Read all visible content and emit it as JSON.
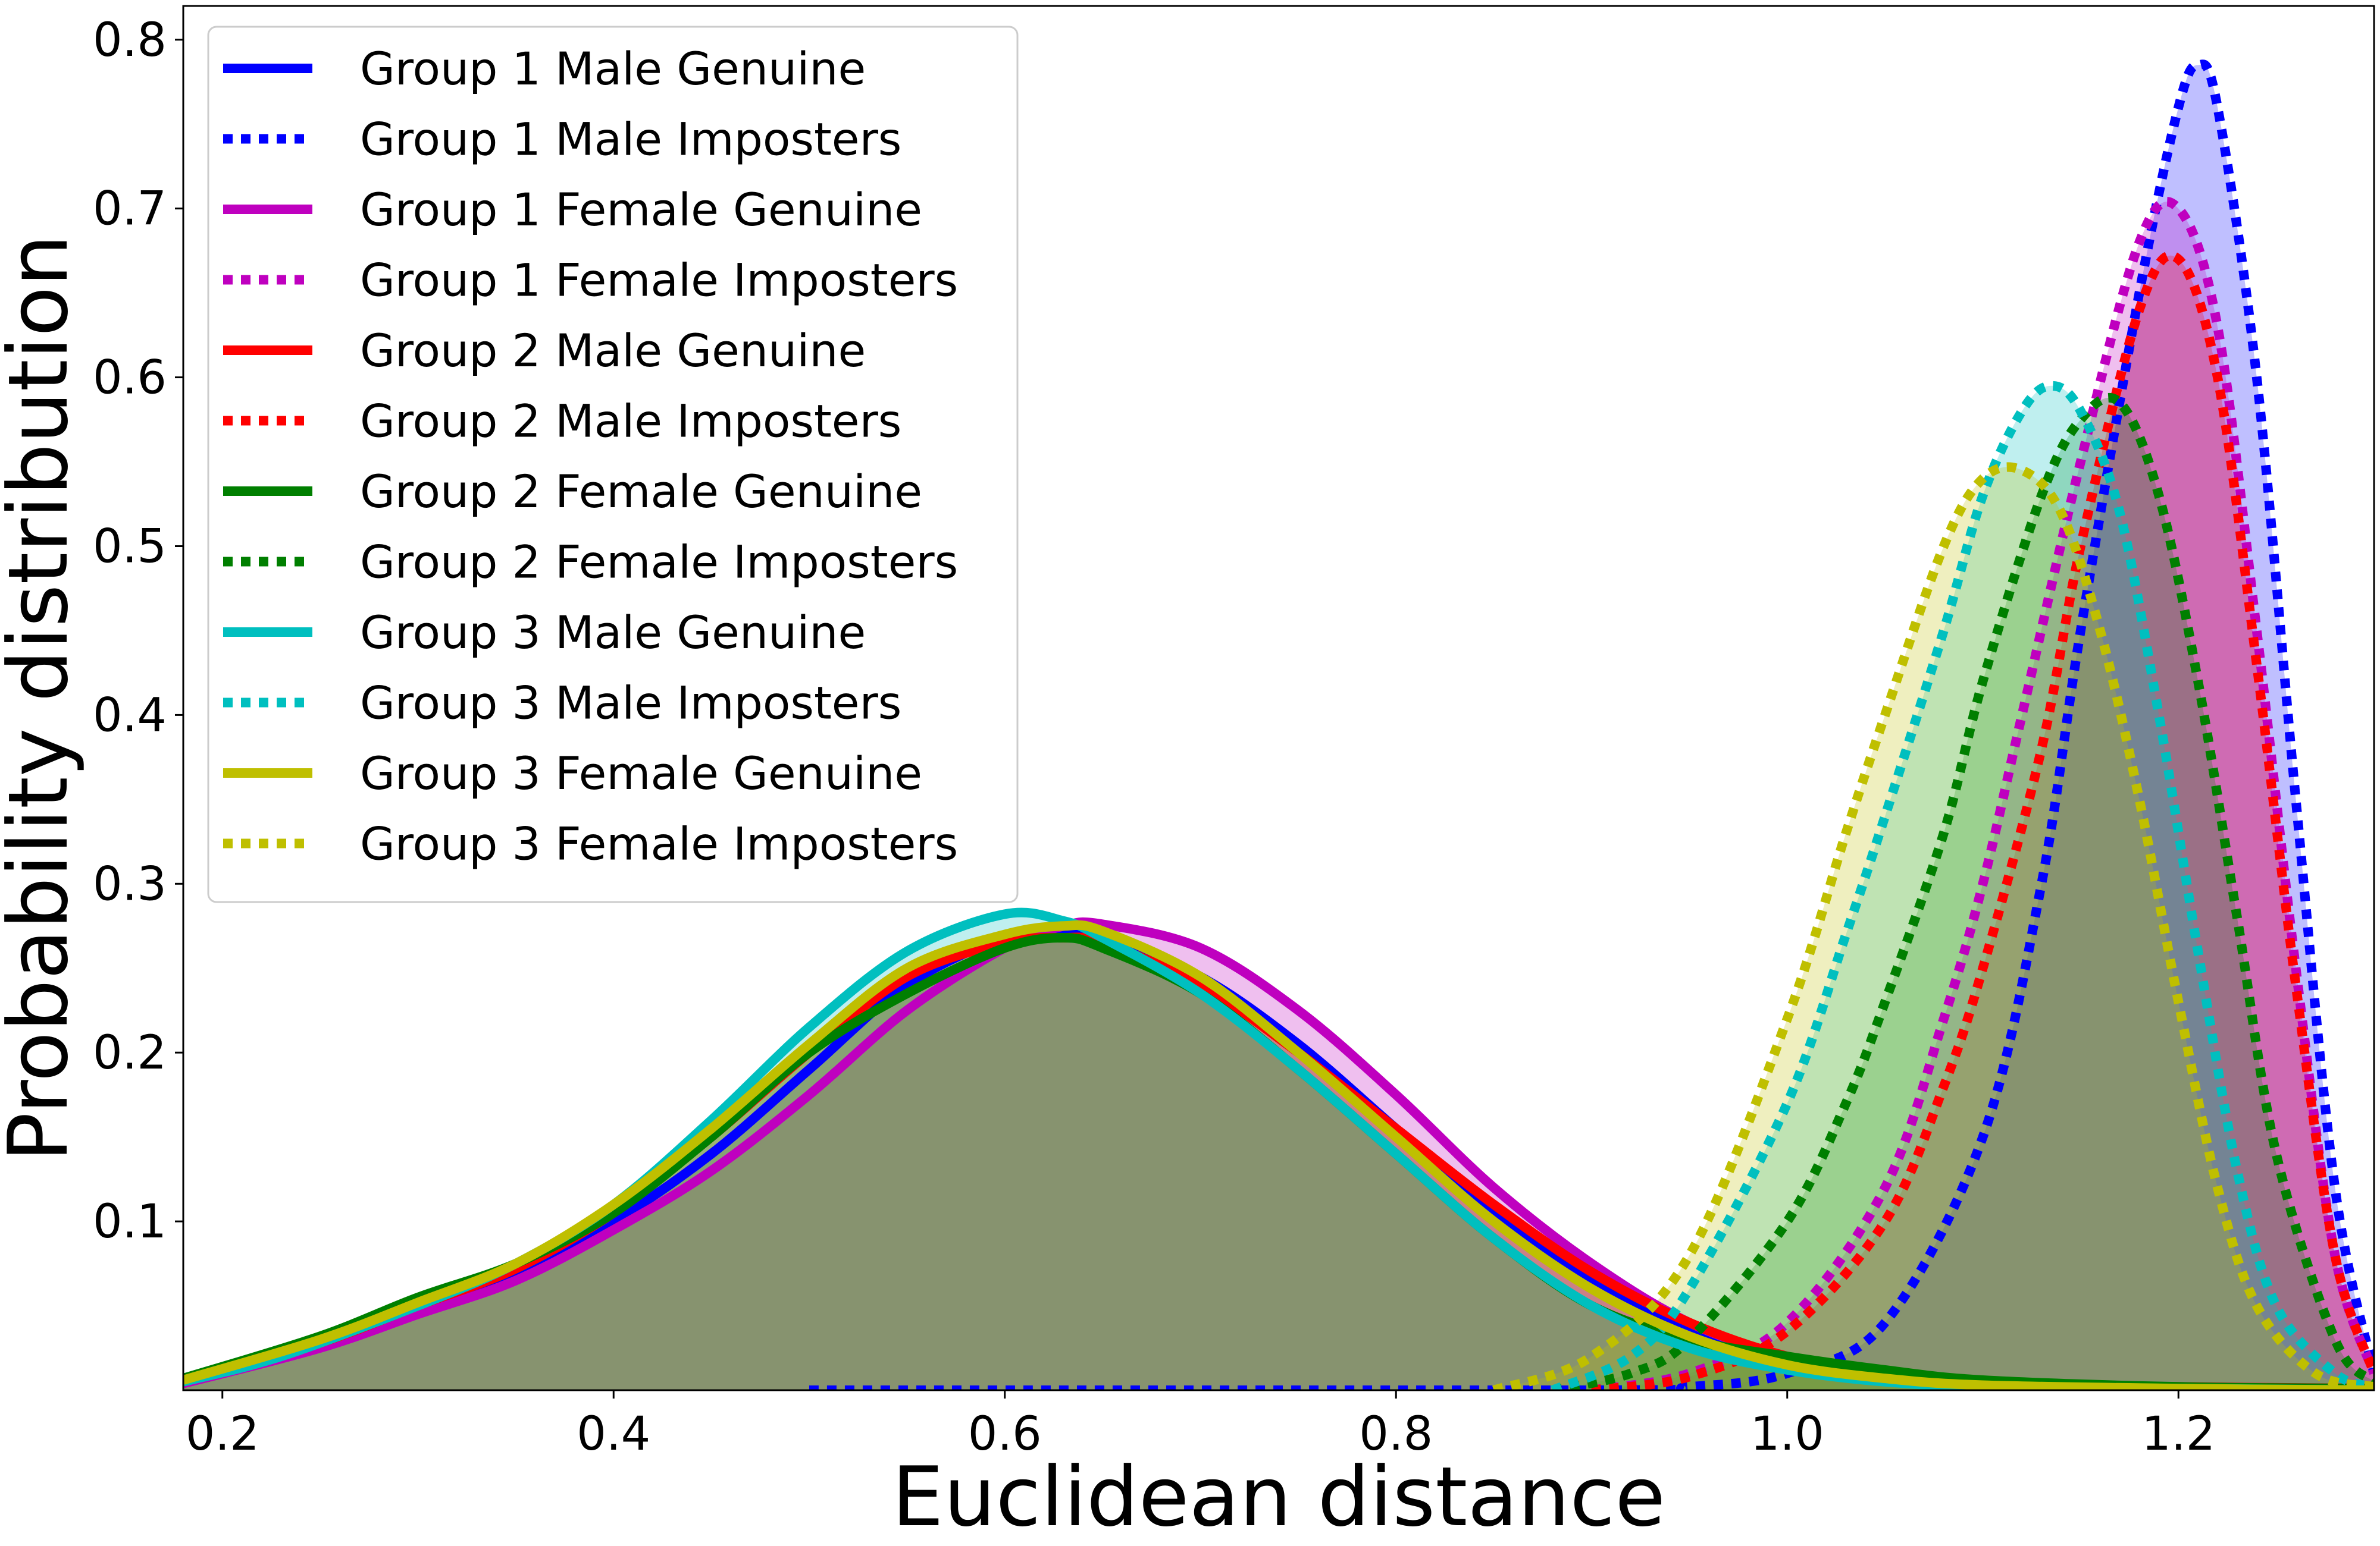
{
  "chart_data": {
    "type": "area",
    "title": "",
    "xlabel": "Euclidean distance",
    "ylabel": "Probability distribution",
    "xlim": [
      0.18,
      1.3
    ],
    "ylim": [
      0.0,
      0.82
    ],
    "x_ticks": [
      0.2,
      0.4,
      0.6,
      0.8,
      1.0,
      1.2
    ],
    "x_tick_labels": [
      "0.2",
      "0.4",
      "0.6",
      "0.8",
      "1.0",
      "1.2"
    ],
    "y_ticks": [
      0.1,
      0.2,
      0.3,
      0.4,
      0.5,
      0.6,
      0.7,
      0.8
    ],
    "y_tick_labels": [
      "0.1",
      "0.2",
      "0.3",
      "0.4",
      "0.5",
      "0.6",
      "0.7",
      "0.8"
    ],
    "grid": false,
    "legend_position": "top-left",
    "series": [
      {
        "name": "Group 1 Male Genuine",
        "color": "#0000ff",
        "dash": "solid",
        "x": [
          0.18,
          0.25,
          0.3,
          0.35,
          0.4,
          0.45,
          0.5,
          0.55,
          0.6,
          0.63,
          0.65,
          0.7,
          0.75,
          0.8,
          0.85,
          0.9,
          0.95,
          1.0,
          1.05,
          1.1,
          1.2,
          1.3
        ],
        "y": [
          0.005,
          0.03,
          0.05,
          0.07,
          0.1,
          0.14,
          0.19,
          0.24,
          0.268,
          0.27,
          0.268,
          0.245,
          0.205,
          0.155,
          0.105,
          0.065,
          0.035,
          0.018,
          0.008,
          0.003,
          0.001,
          0.0
        ]
      },
      {
        "name": "Group 1 Male Imposters",
        "color": "#0000ff",
        "dash": "dotted",
        "x": [
          0.5,
          0.9,
          0.95,
          1.0,
          1.05,
          1.1,
          1.13,
          1.15,
          1.18,
          1.2,
          1.21,
          1.22,
          1.24,
          1.26,
          1.28,
          1.3
        ],
        "y": [
          0.0,
          0.0,
          0.002,
          0.01,
          0.04,
          0.15,
          0.3,
          0.45,
          0.65,
          0.76,
          0.785,
          0.76,
          0.6,
          0.35,
          0.12,
          0.01
        ]
      },
      {
        "name": "Group 1 Female Genuine",
        "color": "#bf00bf",
        "dash": "solid",
        "x": [
          0.18,
          0.25,
          0.3,
          0.35,
          0.4,
          0.45,
          0.5,
          0.55,
          0.6,
          0.63,
          0.65,
          0.7,
          0.75,
          0.8,
          0.85,
          0.9,
          0.95,
          1.0,
          1.05,
          1.1,
          1.2,
          1.3
        ],
        "y": [
          0.004,
          0.025,
          0.045,
          0.065,
          0.095,
          0.13,
          0.175,
          0.225,
          0.262,
          0.275,
          0.276,
          0.262,
          0.225,
          0.175,
          0.12,
          0.075,
          0.04,
          0.02,
          0.009,
          0.004,
          0.001,
          0.0
        ]
      },
      {
        "name": "Group 1 Female Imposters",
        "color": "#bf00bf",
        "dash": "dotted",
        "x": [
          0.9,
          0.95,
          1.0,
          1.05,
          1.08,
          1.1,
          1.12,
          1.15,
          1.18,
          1.2,
          1.22,
          1.24,
          1.26,
          1.28,
          1.3
        ],
        "y": [
          0.0,
          0.01,
          0.04,
          0.12,
          0.22,
          0.3,
          0.4,
          0.55,
          0.68,
          0.7,
          0.63,
          0.45,
          0.25,
          0.08,
          0.01
        ]
      },
      {
        "name": "Group 2 Male Genuine",
        "color": "#ff0000",
        "dash": "solid",
        "x": [
          0.18,
          0.25,
          0.3,
          0.35,
          0.4,
          0.45,
          0.5,
          0.55,
          0.6,
          0.63,
          0.65,
          0.7,
          0.75,
          0.8,
          0.85,
          0.9,
          0.95,
          1.0,
          1.05,
          1.1,
          1.2,
          1.3
        ],
        "y": [
          0.005,
          0.028,
          0.05,
          0.072,
          0.105,
          0.15,
          0.2,
          0.245,
          0.265,
          0.268,
          0.265,
          0.24,
          0.2,
          0.155,
          0.11,
          0.07,
          0.04,
          0.02,
          0.01,
          0.004,
          0.002,
          0.001
        ]
      },
      {
        "name": "Group 2 Male Imposters",
        "color": "#ff0000",
        "dash": "dotted",
        "x": [
          0.9,
          0.95,
          1.0,
          1.05,
          1.08,
          1.1,
          1.13,
          1.15,
          1.18,
          1.2,
          1.22,
          1.24,
          1.26,
          1.28,
          1.3
        ],
        "y": [
          0.0,
          0.008,
          0.035,
          0.1,
          0.18,
          0.25,
          0.38,
          0.5,
          0.64,
          0.67,
          0.6,
          0.43,
          0.24,
          0.08,
          0.01
        ]
      },
      {
        "name": "Group 2 Female Genuine",
        "color": "#007f00",
        "dash": "solid",
        "x": [
          0.18,
          0.25,
          0.3,
          0.35,
          0.4,
          0.45,
          0.5,
          0.55,
          0.6,
          0.63,
          0.65,
          0.7,
          0.75,
          0.8,
          0.85,
          0.9,
          0.95,
          1.0,
          1.05,
          1.1,
          1.2,
          1.3
        ],
        "y": [
          0.007,
          0.032,
          0.055,
          0.075,
          0.105,
          0.15,
          0.2,
          0.235,
          0.262,
          0.268,
          0.262,
          0.235,
          0.19,
          0.14,
          0.09,
          0.05,
          0.03,
          0.02,
          0.012,
          0.006,
          0.002,
          0.001
        ]
      },
      {
        "name": "Group 2 Female Imposters",
        "color": "#007f00",
        "dash": "dotted",
        "x": [
          0.88,
          0.92,
          0.95,
          1.0,
          1.03,
          1.05,
          1.08,
          1.1,
          1.13,
          1.15,
          1.17,
          1.19,
          1.21,
          1.23,
          1.25,
          1.28,
          1.3
        ],
        "y": [
          0.0,
          0.01,
          0.03,
          0.1,
          0.17,
          0.23,
          0.33,
          0.42,
          0.53,
          0.575,
          0.585,
          0.53,
          0.42,
          0.28,
          0.14,
          0.03,
          0.005
        ]
      },
      {
        "name": "Group 3 Male Genuine",
        "color": "#00bfbf",
        "dash": "solid",
        "x": [
          0.18,
          0.23,
          0.3,
          0.35,
          0.4,
          0.45,
          0.5,
          0.55,
          0.6,
          0.63,
          0.65,
          0.7,
          0.75,
          0.8,
          0.85,
          0.9,
          0.95,
          1.0,
          1.05,
          1.1,
          1.2,
          1.3
        ],
        "y": [
          0.005,
          0.02,
          0.05,
          0.075,
          0.11,
          0.16,
          0.215,
          0.26,
          0.282,
          0.278,
          0.268,
          0.235,
          0.19,
          0.14,
          0.09,
          0.05,
          0.025,
          0.012,
          0.005,
          0.002,
          0.001,
          0.0
        ]
      },
      {
        "name": "Group 3 Male Imposters",
        "color": "#00bfbf",
        "dash": "dotted",
        "x": [
          0.88,
          0.92,
          0.95,
          1.0,
          1.03,
          1.05,
          1.08,
          1.1,
          1.12,
          1.135,
          1.15,
          1.17,
          1.19,
          1.21,
          1.23,
          1.25,
          1.28,
          1.3
        ],
        "y": [
          0.0,
          0.02,
          0.06,
          0.17,
          0.27,
          0.34,
          0.45,
          0.53,
          0.58,
          0.595,
          0.58,
          0.52,
          0.4,
          0.26,
          0.13,
          0.05,
          0.01,
          0.002
        ]
      },
      {
        "name": "Group 3 Female Genuine",
        "color": "#bfbf00",
        "dash": "solid",
        "x": [
          0.18,
          0.25,
          0.3,
          0.35,
          0.4,
          0.45,
          0.5,
          0.55,
          0.6,
          0.63,
          0.65,
          0.7,
          0.75,
          0.8,
          0.85,
          0.9,
          0.95,
          1.0,
          1.05,
          1.1,
          1.2,
          1.3
        ],
        "y": [
          0.006,
          0.03,
          0.052,
          0.075,
          0.11,
          0.155,
          0.205,
          0.25,
          0.27,
          0.275,
          0.272,
          0.245,
          0.2,
          0.15,
          0.1,
          0.06,
          0.032,
          0.015,
          0.007,
          0.003,
          0.001,
          0.0
        ]
      },
      {
        "name": "Group 3 Female Imposters",
        "color": "#bfbf00",
        "dash": "dotted",
        "x": [
          0.85,
          0.9,
          0.95,
          1.0,
          1.03,
          1.05,
          1.08,
          1.1,
          1.12,
          1.14,
          1.16,
          1.18,
          1.2,
          1.22,
          1.24,
          1.27,
          1.3
        ],
        "y": [
          0.0,
          0.02,
          0.08,
          0.22,
          0.33,
          0.4,
          0.5,
          0.54,
          0.545,
          0.52,
          0.45,
          0.35,
          0.23,
          0.12,
          0.05,
          0.01,
          0.002
        ]
      }
    ]
  }
}
